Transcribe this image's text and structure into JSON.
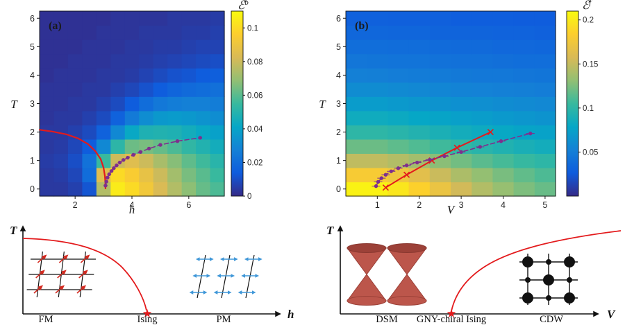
{
  "figure": {
    "background": "#ffffff",
    "icons": {
      "star": "★"
    },
    "colors": {
      "accent_red": "#e31a1c",
      "accent_purple": "#7E2F8E",
      "arrow_blue": "#3f97d8",
      "cone_red": "#bc564b",
      "heatmap_low": "#352a87",
      "heatmap_high": "#f9fb0e"
    },
    "panel_a": {
      "label": "(a)",
      "xlabel": "h",
      "ylabel": "T",
      "colorbar_symbol": "ℰ",
      "colorbar_sup": "b"
    },
    "panel_b": {
      "label": "(b)",
      "xlabel": "V",
      "ylabel": "T",
      "colorbar_symbol": "ℰ",
      "colorbar_sup": "f"
    },
    "schematic_left": {
      "ylabel": "T",
      "xlabel": "h",
      "phase_left": "FM",
      "critical_label": "Ising",
      "phase_right": "PM"
    },
    "schematic_right": {
      "ylabel": "T",
      "xlabel": "V",
      "phase_left": "DSM",
      "critical_label": "GNY-chiral Ising",
      "phase_right": "CDW"
    }
  },
  "chart_data": [
    {
      "type": "heatmap",
      "panel": "(a)",
      "title": "",
      "xlabel": "h",
      "ylabel": "T",
      "colorbar_label": "E^b",
      "colormap": "parula",
      "vmin": 0,
      "vmax": 0.11,
      "xticks": [
        2,
        4,
        6
      ],
      "yticks": [
        0,
        1,
        2,
        3,
        4,
        5,
        6
      ],
      "colorbar_ticks": [
        0,
        0.02,
        0.04,
        0.06,
        0.08,
        0.1
      ],
      "x": [
        1,
        1.5,
        2,
        2.5,
        3,
        3.5,
        4,
        4.5,
        5,
        5.5,
        6,
        6.5,
        7
      ],
      "y": [
        0,
        0.5,
        1,
        1.5,
        2,
        2.5,
        3,
        3.5,
        4,
        4.5,
        5,
        5.5,
        6
      ],
      "values": [
        [
          0.004,
          0.004,
          0.006,
          0.012,
          0.075,
          0.105,
          0.1,
          0.092,
          0.083,
          0.075,
          0.068,
          0.062,
          0.058
        ],
        [
          0.004,
          0.005,
          0.008,
          0.02,
          0.085,
          0.1,
          0.095,
          0.088,
          0.08,
          0.072,
          0.065,
          0.06,
          0.055
        ],
        [
          0.005,
          0.006,
          0.01,
          0.022,
          0.055,
          0.08,
          0.085,
          0.08,
          0.073,
          0.067,
          0.061,
          0.056,
          0.051
        ],
        [
          0.004,
          0.005,
          0.008,
          0.014,
          0.03,
          0.052,
          0.063,
          0.065,
          0.062,
          0.058,
          0.053,
          0.049,
          0.045
        ],
        [
          0.004,
          0.004,
          0.006,
          0.009,
          0.016,
          0.03,
          0.042,
          0.048,
          0.049,
          0.048,
          0.045,
          0.042,
          0.039
        ],
        [
          0.003,
          0.004,
          0.004,
          0.006,
          0.009,
          0.016,
          0.025,
          0.032,
          0.036,
          0.037,
          0.036,
          0.034,
          0.032
        ],
        [
          0.003,
          0.003,
          0.004,
          0.004,
          0.006,
          0.009,
          0.014,
          0.02,
          0.024,
          0.026,
          0.027,
          0.027,
          0.026
        ],
        [
          0.003,
          0.003,
          0.003,
          0.004,
          0.004,
          0.006,
          0.008,
          0.011,
          0.014,
          0.017,
          0.019,
          0.02,
          0.021
        ],
        [
          0.002,
          0.003,
          0.003,
          0.003,
          0.004,
          0.004,
          0.005,
          0.007,
          0.009,
          0.011,
          0.012,
          0.014,
          0.015
        ],
        [
          0.002,
          0.002,
          0.003,
          0.003,
          0.003,
          0.004,
          0.004,
          0.005,
          0.006,
          0.007,
          0.008,
          0.009,
          0.01
        ],
        [
          0.002,
          0.002,
          0.002,
          0.003,
          0.003,
          0.003,
          0.004,
          0.004,
          0.005,
          0.005,
          0.006,
          0.007,
          0.007
        ],
        [
          0.002,
          0.002,
          0.002,
          0.002,
          0.003,
          0.003,
          0.003,
          0.004,
          0.004,
          0.004,
          0.005,
          0.005,
          0.006
        ],
        [
          0.002,
          0.002,
          0.002,
          0.002,
          0.002,
          0.003,
          0.003,
          0.003,
          0.003,
          0.004,
          0.004,
          0.004,
          0.005
        ]
      ],
      "overlays": [
        {
          "name": "ising-transition-line",
          "color": "#e31a1c",
          "width": 2.2,
          "points": [
            [
              0.75,
              2.08
            ],
            [
              1.2,
              2.02
            ],
            [
              1.7,
              1.92
            ],
            [
              2.1,
              1.78
            ],
            [
              2.45,
              1.58
            ],
            [
              2.72,
              1.32
            ],
            [
              2.9,
              1.05
            ],
            [
              3.0,
              0.75
            ],
            [
              3.05,
              0.45
            ],
            [
              3.07,
              0.15
            ],
            [
              3.07,
              0.02
            ]
          ]
        },
        {
          "name": "crossover-line",
          "color": "#7E2F8E",
          "width": 1.6,
          "dash": true,
          "marker": "circle",
          "xerr": 0.07,
          "points": [
            [
              3.07,
              0.12
            ],
            [
              3.1,
              0.26
            ],
            [
              3.14,
              0.4
            ],
            [
              3.2,
              0.52
            ],
            [
              3.28,
              0.63
            ],
            [
              3.36,
              0.73
            ],
            [
              3.46,
              0.83
            ],
            [
              3.57,
              0.93
            ],
            [
              3.7,
              1.02
            ],
            [
              3.85,
              1.1
            ],
            [
              4.05,
              1.2
            ],
            [
              4.3,
              1.3
            ],
            [
              4.6,
              1.42
            ],
            [
              5.0,
              1.55
            ],
            [
              5.6,
              1.68
            ],
            [
              6.4,
              1.8
            ]
          ]
        }
      ]
    },
    {
      "type": "heatmap",
      "panel": "(b)",
      "title": "",
      "xlabel": "V",
      "ylabel": "T",
      "colorbar_label": "E^f",
      "colormap": "parula",
      "vmin": 0,
      "vmax": 0.21,
      "xticks": [
        1,
        2,
        3,
        4,
        5
      ],
      "yticks": [
        0,
        1,
        2,
        3,
        4,
        5,
        6
      ],
      "colorbar_ticks": [
        0.05,
        0.1,
        0.15,
        0.2
      ],
      "x": [
        0.5,
        1,
        1.5,
        2,
        2.5,
        3,
        3.5,
        4,
        4.5,
        5
      ],
      "y": [
        0,
        0.5,
        1,
        1.5,
        2,
        2.5,
        3,
        3.5,
        4,
        4.5,
        5,
        5.5,
        6
      ],
      "values": [
        [
          0.205,
          0.205,
          0.198,
          0.185,
          0.17,
          0.155,
          0.143,
          0.133,
          0.125,
          0.119
        ],
        [
          0.18,
          0.18,
          0.174,
          0.164,
          0.152,
          0.141,
          0.132,
          0.124,
          0.117,
          0.111
        ],
        [
          0.148,
          0.148,
          0.143,
          0.137,
          0.129,
          0.122,
          0.115,
          0.109,
          0.104,
          0.1
        ],
        [
          0.12,
          0.12,
          0.116,
          0.112,
          0.107,
          0.102,
          0.097,
          0.093,
          0.089,
          0.086
        ],
        [
          0.1,
          0.1,
          0.097,
          0.094,
          0.09,
          0.086,
          0.083,
          0.08,
          0.077,
          0.075
        ],
        [
          0.084,
          0.084,
          0.082,
          0.079,
          0.077,
          0.074,
          0.072,
          0.069,
          0.067,
          0.065
        ],
        [
          0.071,
          0.071,
          0.069,
          0.067,
          0.065,
          0.063,
          0.062,
          0.06,
          0.059,
          0.057
        ],
        [
          0.06,
          0.06,
          0.059,
          0.057,
          0.056,
          0.054,
          0.053,
          0.052,
          0.051,
          0.05
        ],
        [
          0.052,
          0.051,
          0.05,
          0.049,
          0.048,
          0.047,
          0.046,
          0.046,
          0.045,
          0.044
        ],
        [
          0.045,
          0.044,
          0.043,
          0.043,
          0.042,
          0.041,
          0.041,
          0.04,
          0.039,
          0.039
        ],
        [
          0.039,
          0.039,
          0.038,
          0.038,
          0.037,
          0.036,
          0.036,
          0.035,
          0.035,
          0.034
        ],
        [
          0.034,
          0.034,
          0.033,
          0.033,
          0.032,
          0.032,
          0.032,
          0.031,
          0.031,
          0.03
        ],
        [
          0.03,
          0.03,
          0.029,
          0.029,
          0.029,
          0.028,
          0.028,
          0.028,
          0.027,
          0.027
        ]
      ],
      "overlays": [
        {
          "name": "gny-transition-line",
          "color": "#e31a1c",
          "width": 2.0,
          "marker": "x",
          "points": [
            [
              1.2,
              0.05
            ],
            [
              1.7,
              0.5
            ],
            [
              2.3,
              1.0
            ],
            [
              2.9,
              1.45
            ],
            [
              3.7,
              2.0
            ]
          ]
        },
        {
          "name": "crossover-line",
          "color": "#7E2F8E",
          "width": 1.6,
          "dash": true,
          "marker": "circle",
          "xerr": 0.1,
          "points": [
            [
              0.97,
              0.1
            ],
            [
              1.02,
              0.25
            ],
            [
              1.1,
              0.38
            ],
            [
              1.2,
              0.5
            ],
            [
              1.33,
              0.62
            ],
            [
              1.5,
              0.73
            ],
            [
              1.7,
              0.83
            ],
            [
              1.95,
              0.93
            ],
            [
              2.25,
              1.03
            ],
            [
              2.6,
              1.15
            ],
            [
              3.0,
              1.3
            ],
            [
              3.45,
              1.48
            ],
            [
              3.95,
              1.68
            ],
            [
              4.65,
              1.95
            ]
          ]
        }
      ]
    },
    {
      "type": "diagram",
      "name": "ising-phase-schematic",
      "xlabel": "h",
      "ylabel": "T",
      "phases": [
        "FM",
        "PM"
      ],
      "critical_point": {
        "label": "Ising",
        "marker": "star"
      },
      "boundary": "second-order transition line from finite-T axis down to the Ising critical point on the h axis"
    },
    {
      "type": "diagram",
      "name": "gny-phase-schematic",
      "xlabel": "V",
      "ylabel": "T",
      "phases": [
        "DSM",
        "CDW"
      ],
      "critical_point": {
        "label": "GNY-chiral Ising",
        "marker": "star"
      },
      "boundary": "transition line rising from the GNY-chiral Ising critical point toward large V"
    }
  ]
}
